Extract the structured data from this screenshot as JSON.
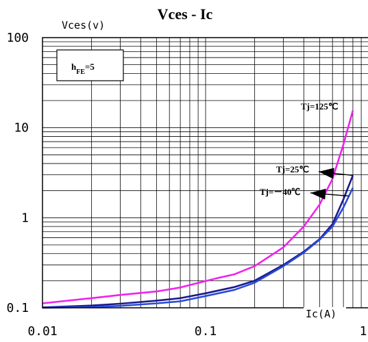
{
  "chart_data": {
    "type": "line",
    "title": "Vces - Ic",
    "xlabel": "Ic(A)",
    "ylabel": "Vces(v)",
    "x_scale": "log",
    "y_scale": "log",
    "xlim": [
      0.01,
      1
    ],
    "ylim": [
      0.1,
      100
    ],
    "x_ticks": [
      "0.01",
      "0.1",
      "1"
    ],
    "y_ticks": [
      "0.1",
      "1",
      "10",
      "100"
    ],
    "grid": true,
    "annotation_box": {
      "main": "h",
      "sub": "FE",
      "suffix": "=5"
    },
    "series": [
      {
        "name": "Tj=125℃",
        "color": "#ee22ee",
        "points": [
          [
            0.01,
            0.112
          ],
          [
            0.02,
            0.128
          ],
          [
            0.03,
            0.139
          ],
          [
            0.05,
            0.152
          ],
          [
            0.07,
            0.168
          ],
          [
            0.1,
            0.198
          ],
          [
            0.12,
            0.215
          ],
          [
            0.15,
            0.235
          ],
          [
            0.2,
            0.29
          ],
          [
            0.3,
            0.47
          ],
          [
            0.4,
            0.8
          ],
          [
            0.5,
            1.4
          ],
          [
            0.6,
            2.7
          ],
          [
            0.7,
            6.5
          ],
          [
            0.8,
            15.5
          ]
        ]
      },
      {
        "name": "Tj=25℃",
        "color": "#1a1a8a",
        "points": [
          [
            0.01,
            0.101
          ],
          [
            0.02,
            0.106
          ],
          [
            0.03,
            0.111
          ],
          [
            0.05,
            0.12
          ],
          [
            0.07,
            0.128
          ],
          [
            0.1,
            0.145
          ],
          [
            0.15,
            0.17
          ],
          [
            0.2,
            0.2
          ],
          [
            0.3,
            0.3
          ],
          [
            0.4,
            0.42
          ],
          [
            0.5,
            0.58
          ],
          [
            0.6,
            0.85
          ],
          [
            0.7,
            1.6
          ],
          [
            0.8,
            2.95
          ]
        ]
      },
      {
        "name": "Tj=－40℃",
        "color": "#2a4ad8",
        "points": [
          [
            0.01,
            0.1
          ],
          [
            0.02,
            0.102
          ],
          [
            0.03,
            0.105
          ],
          [
            0.05,
            0.112
          ],
          [
            0.07,
            0.118
          ],
          [
            0.1,
            0.135
          ],
          [
            0.15,
            0.158
          ],
          [
            0.2,
            0.19
          ],
          [
            0.3,
            0.29
          ],
          [
            0.4,
            0.41
          ],
          [
            0.5,
            0.57
          ],
          [
            0.6,
            0.8
          ],
          [
            0.7,
            1.3
          ],
          [
            0.8,
            2.15
          ]
        ]
      }
    ],
    "labels": [
      {
        "text": "Tj=125℃",
        "series": 0
      },
      {
        "text": "Tj=25℃",
        "series": 1
      },
      {
        "text": "Tj=－40℃",
        "series": 2
      }
    ]
  }
}
